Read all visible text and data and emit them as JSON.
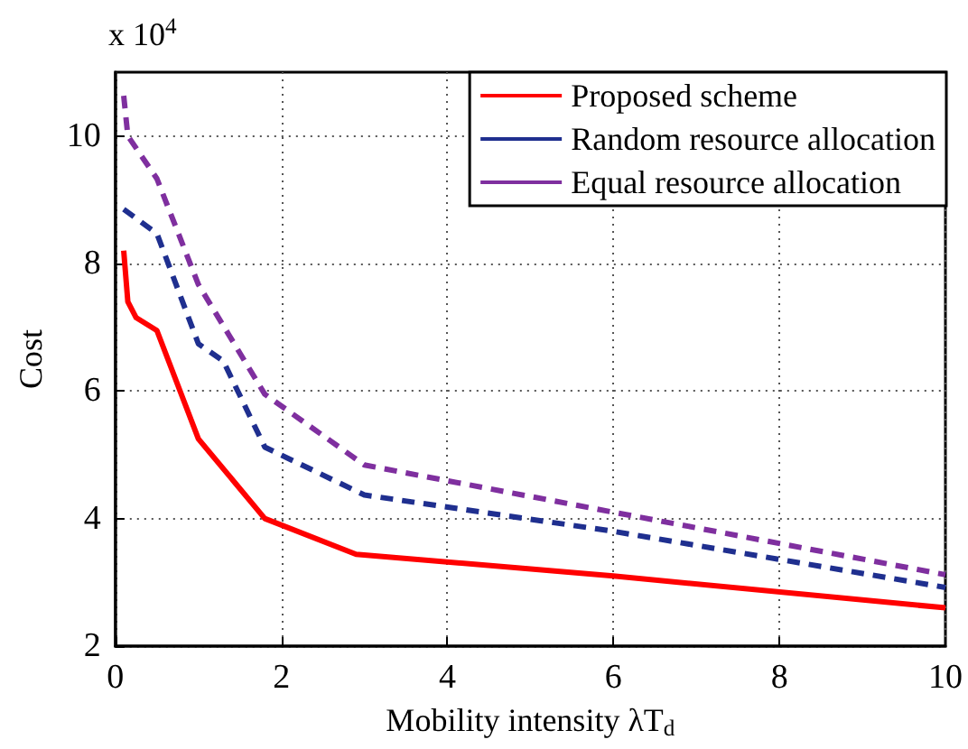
{
  "chart_data": {
    "type": "line",
    "xlabel": "Mobility intensity λT$_{d}$",
    "ylabel": "Cost",
    "annotations": [
      "x 10$^{4}$"
    ],
    "xlim": [
      0,
      10
    ],
    "xticks": [
      0,
      2,
      4,
      6,
      8,
      10
    ],
    "ylim": [
      2,
      11
    ],
    "yticks": [
      2,
      4,
      6,
      8,
      10
    ],
    "grid": true,
    "legend": "top right",
    "marker": "none",
    "series": [
      {
        "name": "Proposed scheme",
        "color": "#ff0000",
        "line_style": "solid",
        "x": [
          0.1,
          0.15,
          0.25,
          0.5,
          1.0,
          1.8,
          2.9,
          6,
          10
        ],
        "values": [
          8.2,
          7.4,
          7.15,
          6.95,
          5.25,
          4.0,
          3.44,
          3.1,
          2.6
        ]
      },
      {
        "name": "Random resource allocation",
        "color": "#1f2f8f",
        "line_style": "dashed",
        "x": [
          0.1,
          0.5,
          1.0,
          1.3,
          1.8,
          3,
          6,
          10
        ],
        "values": [
          8.85,
          8.47,
          6.74,
          6.47,
          5.12,
          4.37,
          3.8,
          2.92
        ]
      },
      {
        "name": "Equal resource allocation",
        "color": "#7f2f9f",
        "line_style": "dashed",
        "x": [
          0.1,
          0.15,
          0.5,
          1.0,
          1.8,
          3,
          6,
          10
        ],
        "values": [
          10.63,
          10.0,
          9.33,
          7.67,
          5.95,
          4.84,
          4.1,
          3.12
        ]
      }
    ]
  }
}
